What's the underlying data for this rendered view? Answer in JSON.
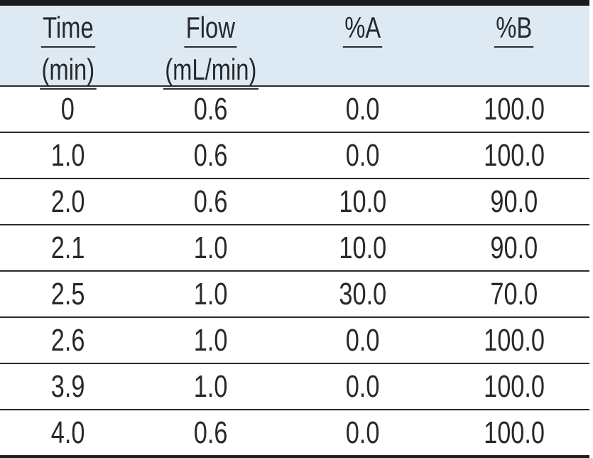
{
  "chart_data": {
    "type": "table",
    "columns": [
      "Time (min)",
      "Flow (mL/min)",
      "%A",
      "%B"
    ],
    "rows": [
      [
        0.0,
        0.6,
        0.0,
        100.0
      ],
      [
        1.0,
        0.6,
        0.0,
        100.0
      ],
      [
        2.0,
        0.6,
        10.0,
        90.0
      ],
      [
        2.1,
        1.0,
        10.0,
        90.0
      ],
      [
        2.5,
        1.0,
        30.0,
        70.0
      ],
      [
        2.6,
        1.0,
        0.0,
        100.0
      ],
      [
        3.9,
        1.0,
        0.0,
        100.0
      ],
      [
        4.0,
        0.6,
        0.0,
        100.0
      ]
    ],
    "layout_hints": {
      "header_underlined": true,
      "header_background": "#ddeaf3",
      "grid": "horizontal-lines-only"
    }
  },
  "table": {
    "header": [
      {
        "line1": "Time",
        "line2": "(min)"
      },
      {
        "line1": "Flow",
        "line2": "(mL/min)"
      },
      {
        "line1": "%A",
        "line2": ""
      },
      {
        "line1": "%B",
        "line2": ""
      }
    ],
    "rows": [
      [
        "0",
        "0.6",
        "0.0",
        "100.0"
      ],
      [
        "1.0",
        "0.6",
        "0.0",
        "100.0"
      ],
      [
        "2.0",
        "0.6",
        "10.0",
        "90.0"
      ],
      [
        "2.1",
        "1.0",
        "10.0",
        "90.0"
      ],
      [
        "2.5",
        "1.0",
        "30.0",
        "70.0"
      ],
      [
        "2.6",
        "1.0",
        "0.0",
        "100.0"
      ],
      [
        "3.9",
        "1.0",
        "0.0",
        "100.0"
      ],
      [
        "4.0",
        "0.6",
        "0.0",
        "100.0"
      ]
    ]
  },
  "colors": {
    "header_background": "#ddeaf3",
    "top_border": "#1b1b1b",
    "bottom_border": "#1f1f1f",
    "row_separator": "#2a2a2a",
    "text": "#28292b"
  }
}
